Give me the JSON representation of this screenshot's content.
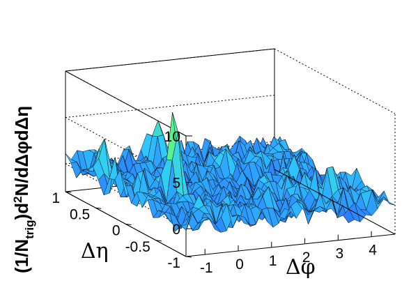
{
  "chart_data": {
    "type": "surface",
    "title": "",
    "xlabel": "Δφ",
    "ylabel": "Δη",
    "zlabel": "(1/N_trig)d²N/dΔφdΔη",
    "zlabel_parts": {
      "pre": "(1/N",
      "sub": "trig",
      "mid": ")d",
      "sup": "2",
      "post": "N/dΔφdΔη"
    },
    "xlim": [
      -1.57,
      4.71
    ],
    "ylim": [
      -1,
      1
    ],
    "zlim": [
      -3,
      10
    ],
    "x_ticks": [
      "-1",
      "0",
      "1",
      "2",
      "3",
      "4"
    ],
    "y_ticks": [
      "1",
      "0.5",
      "0",
      "-0.5",
      "-1"
    ],
    "z_ticks": [
      "10",
      "5",
      "0"
    ],
    "colormap": [
      "#2a3cff",
      "#2ec8ff",
      "#4bf0a0",
      "#e8ff20"
    ],
    "peaks": [
      {
        "x": 0.0,
        "y": 0.05,
        "z": 8.4
      },
      {
        "x": 1.0,
        "y": 0.9,
        "z": 5.3
      },
      {
        "x": 3.6,
        "y": -0.55,
        "z": 3.6
      },
      {
        "x": 2.1,
        "y": 0.45,
        "z": 3.0
      },
      {
        "x": -1.2,
        "y": 0.6,
        "z": 2.6
      }
    ],
    "background_level": 0,
    "noise_amplitude": 1.3
  }
}
